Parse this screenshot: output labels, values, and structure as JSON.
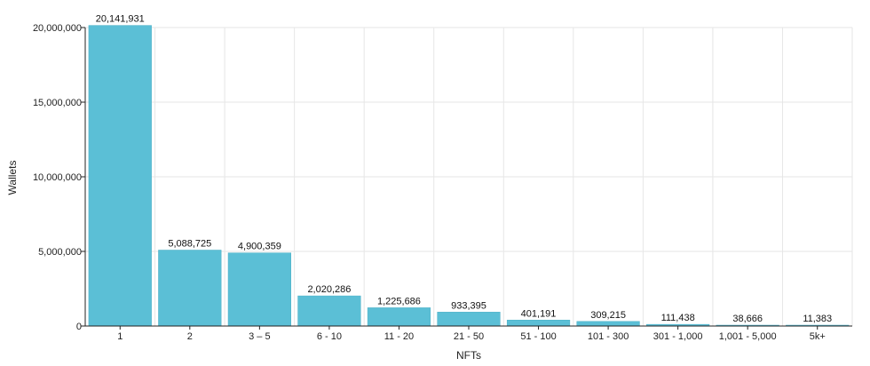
{
  "colors": {
    "bar": "#5bbfd6",
    "bar_stroke": "#4aaec5",
    "grid": "#e6e6e6",
    "axis": "#222222"
  },
  "chart_data": {
    "type": "bar",
    "title": "",
    "xlabel": "NFTs",
    "ylabel": "Wallets",
    "ylim": [
      0,
      20000000
    ],
    "yticks": [
      0,
      5000000,
      10000000,
      15000000,
      20000000
    ],
    "ytick_labels": [
      "0",
      "5,000,000",
      "10,000,000",
      "15,000,000",
      "20,000,000"
    ],
    "grid": true,
    "legend": "none",
    "categories": [
      "1",
      "2",
      "3 – 5",
      "6 - 10",
      "11 - 20",
      "21 - 50",
      "51 - 100",
      "101 - 300",
      "301 - 1,000",
      "1,001 - 5,000",
      "5k+"
    ],
    "values": [
      20141931,
      5088725,
      4900359,
      2020286,
      1225686,
      933395,
      401191,
      309215,
      111438,
      38666,
      11383
    ],
    "value_labels": [
      "20,141,931",
      "5,088,725",
      "4,900,359",
      "2,020,286",
      "1,225,686",
      "933,395",
      "401,191",
      "309,215",
      "111,438",
      "38,666",
      "11,383"
    ]
  }
}
